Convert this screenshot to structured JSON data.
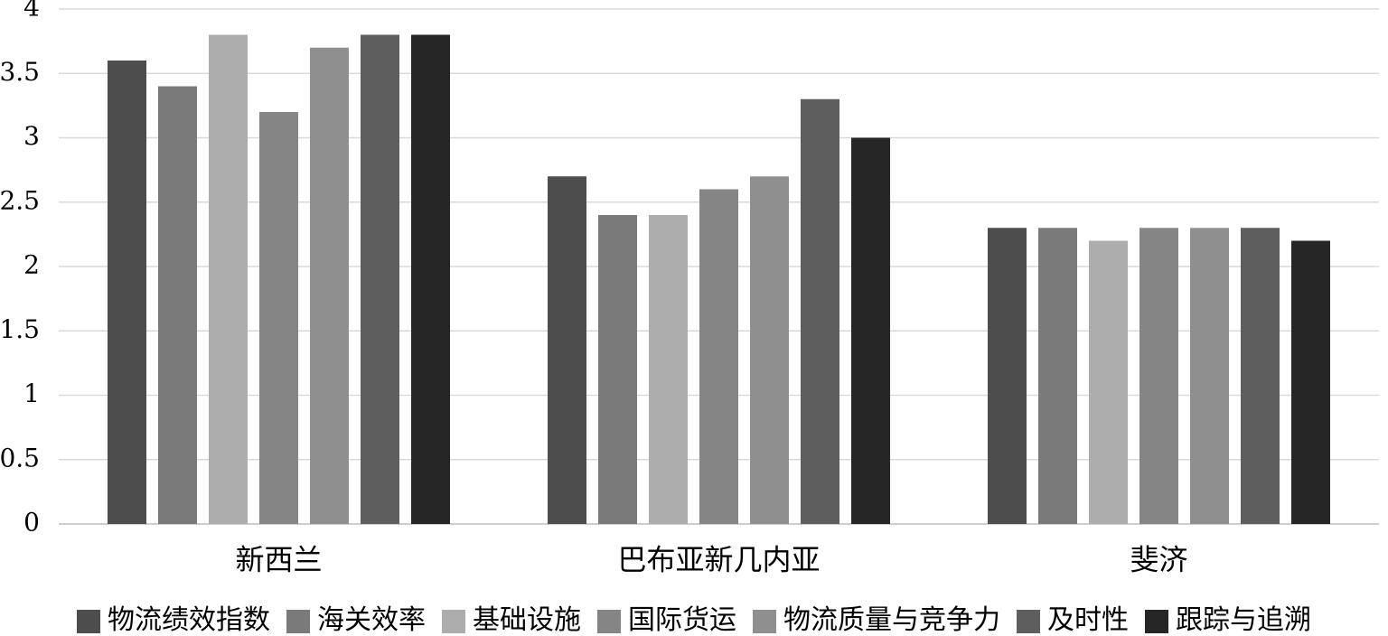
{
  "chart_data": {
    "type": "bar",
    "categories": [
      "新西兰",
      "巴布亚新几内亚",
      "斐济"
    ],
    "series": [
      {
        "name": "物流绩效指数",
        "values": [
          3.6,
          2.7,
          2.3
        ],
        "color": "#4d4d4d"
      },
      {
        "name": "海关效率",
        "values": [
          3.4,
          2.4,
          2.3
        ],
        "color": "#7a7a7a"
      },
      {
        "name": "基础设施",
        "values": [
          3.8,
          2.4,
          2.2
        ],
        "color": "#adadad"
      },
      {
        "name": "国际货运",
        "values": [
          3.2,
          2.6,
          2.3
        ],
        "color": "#858585"
      },
      {
        "name": "物流质量与竞争力",
        "values": [
          3.7,
          2.7,
          2.3
        ],
        "color": "#8f8f8f"
      },
      {
        "name": "及时性",
        "values": [
          3.8,
          3.3,
          2.3
        ],
        "color": "#5e5e5e"
      },
      {
        "name": "跟踪与追溯",
        "values": [
          3.8,
          3.0,
          2.2
        ],
        "color": "#262626"
      }
    ],
    "yticks": [
      "0",
      "0.5",
      "1",
      "1.5",
      "2",
      "2.5",
      "3",
      "3.5",
      "4"
    ],
    "ylim": [
      0,
      4
    ],
    "grid": true,
    "legend_position": "bottom"
  }
}
